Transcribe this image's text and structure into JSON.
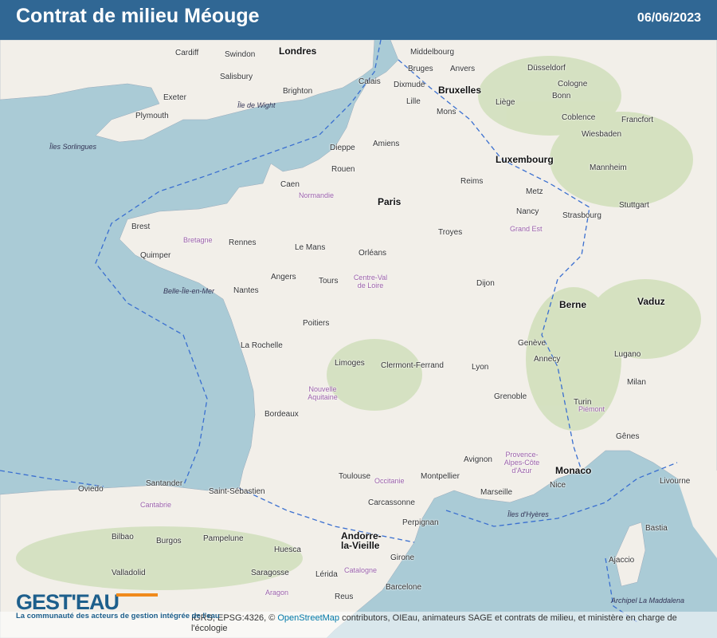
{
  "header": {
    "title": "Contrat de milieu Méouge",
    "date": "06/06/2023"
  },
  "map": {
    "colors": {
      "sea": "#aacbd6",
      "land": "#f2efe9",
      "header": "#306794",
      "border": "#3a6fd0"
    },
    "labels": {
      "big": [
        "Londres",
        "Bruxelles",
        "Paris",
        "Luxembourg",
        "Berne",
        "Vaduz",
        "Monaco",
        "Andorre-la-Vieille"
      ],
      "cities": [
        "Cardiff",
        "Swindon",
        "Salisbury",
        "Brighton",
        "Exeter",
        "Plymouth",
        "Calais",
        "Dixmude",
        "Bruges",
        "Anvers",
        "Middelbourg",
        "Lille",
        "Mons",
        "Liège",
        "Düsseldorf",
        "Cologne",
        "Bonn",
        "Coblence",
        "Wiesbaden",
        "Francfort",
        "Mannheim",
        "Stuttgart",
        "Strasbourg",
        "Amiens",
        "Rouen",
        "Caen",
        "Dieppe",
        "Reims",
        "Metz",
        "Nancy",
        "Rennes",
        "Brest",
        "Quimper",
        "Le Mans",
        "Orléans",
        "Troyes",
        "Dijon",
        "Nantes",
        "Angers",
        "Tours",
        "Poitiers",
        "La Rochelle",
        "Limoges",
        "Clermont-Ferrand",
        "Lyon",
        "Grenoble",
        "Genève",
        "Annecy",
        "Bordeaux",
        "Toulouse",
        "Montpellier",
        "Marseille",
        "Nice",
        "Avignon",
        "Perpignan",
        "Carcassonne",
        "Turin",
        "Milan",
        "Gênes",
        "Lugano",
        "Bilbao",
        "Saint-Sébastien",
        "Pampelune",
        "Saragosse",
        "Barcelone",
        "Valladolid",
        "Burgos",
        "Santander",
        "Oviedo",
        "Huesca",
        "Lérida",
        "Reus",
        "Girone",
        "Ajaccio",
        "Bastia",
        "Livourne"
      ],
      "regions": [
        "Normandie",
        "Bretagne",
        "Centre-Val de Loire",
        "Grand Est",
        "Nouvelle Aquitaine",
        "Occitanie",
        "Provence-Alpes-Côte d'Azur",
        "Catalogne",
        "Aragon",
        "Piémont",
        "Cantabrie"
      ],
      "seas": [
        "Îles Sorlingues",
        "Belle-Île-en-Mer",
        "Îles d'Hyères",
        "Archipel La Maddalena",
        "Île de Wight"
      ]
    }
  },
  "logo": {
    "text": "GEST'EAU",
    "tagline": "La communauté des acteurs de gestion intégrée de l'eau"
  },
  "attribution": {
    "prefix": "IGRS, EPSG:4326, © ",
    "link": "OpenStreetMap",
    "suffix": " contributors, OIEau, animateurs SAGE et contrats de milieu, et ministère en charge de l'écologie"
  }
}
